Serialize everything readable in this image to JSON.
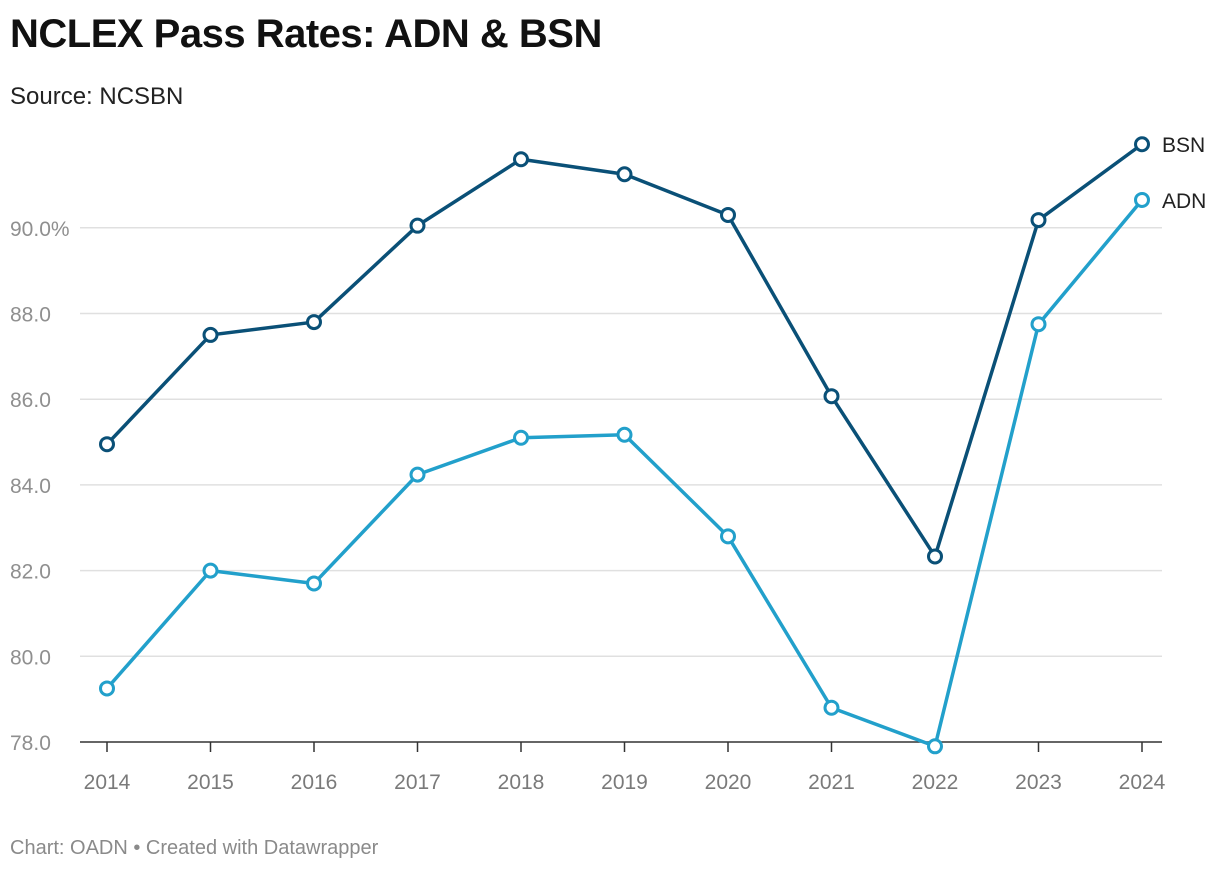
{
  "header": {
    "title": "NCLEX Pass Rates: ADN & BSN",
    "subtitle": "Source: NCSBN"
  },
  "footer": {
    "credit": "Chart: OADN • Created with Datawrapper"
  },
  "colors": {
    "bsn": "#0a5077",
    "adn": "#22a0cb",
    "grid": "#e0e0e0",
    "axis": "#333333"
  },
  "chart_data": {
    "type": "line",
    "title": "NCLEX Pass Rates: ADN & BSN",
    "xlabel": "",
    "ylabel": "",
    "x": [
      "2014",
      "2015",
      "2016",
      "2017",
      "2018",
      "2019",
      "2020",
      "2021",
      "2022",
      "2023",
      "2024"
    ],
    "ylim": [
      78,
      92
    ],
    "y_ticks": [
      78,
      80,
      82,
      84,
      86,
      88,
      90
    ],
    "y_tick_labels": [
      "78.0",
      "80.0",
      "82.0",
      "84.0",
      "86.0",
      "88.0",
      "90.0%"
    ],
    "grid": true,
    "legend": "inline-right",
    "series": [
      {
        "name": "BSN",
        "color_key": "bsn",
        "values": [
          84.95,
          87.5,
          87.8,
          90.05,
          91.6,
          91.25,
          90.3,
          86.07,
          82.33,
          90.18,
          91.95
        ]
      },
      {
        "name": "ADN",
        "color_key": "adn",
        "values": [
          79.25,
          82.0,
          81.7,
          84.24,
          85.1,
          85.17,
          82.8,
          78.8,
          77.9,
          87.75,
          90.65
        ]
      }
    ]
  }
}
